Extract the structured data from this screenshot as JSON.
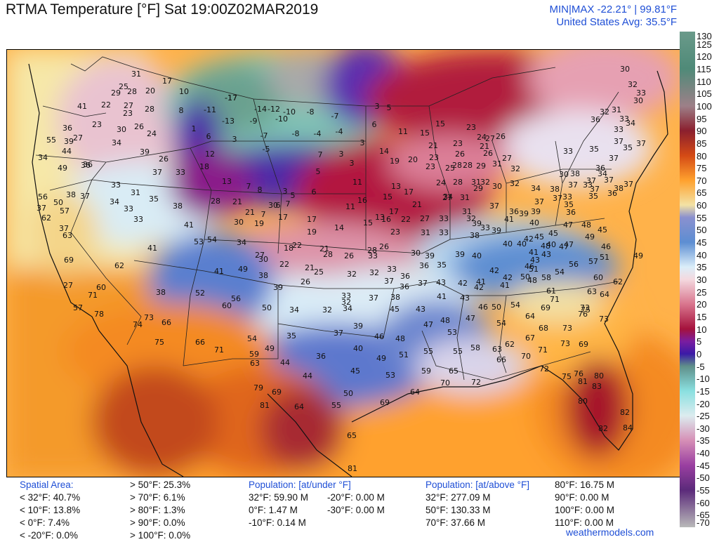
{
  "header": {
    "title": "RTMA Temperature [°F]  Sat 19:00Z02MAR2019",
    "minmax": "MIN|MAX -22.21°  |  99.81°F",
    "avg": "United States Avg: 35.5°F"
  },
  "colorbar": {
    "ticks": [
      "130",
      "125",
      "120",
      "115",
      "110",
      "105",
      "100",
      "95",
      "90",
      "85",
      "80",
      "75",
      "70",
      "65",
      "60",
      "55",
      "50",
      "45",
      "40",
      "35",
      "30",
      "25",
      "20",
      "15",
      "10",
      "5",
      "0",
      "-5",
      "-10",
      "-15",
      "-20",
      "-25",
      "-30",
      "-35",
      "-40",
      "-45",
      "-50",
      "-55",
      "-60",
      "-65",
      "-70"
    ],
    "stops": [
      {
        "v": 130,
        "c": "#6a9a8a"
      },
      {
        "v": 115,
        "c": "#4f8a78"
      },
      {
        "v": 100,
        "c": "#9d8088"
      },
      {
        "v": 90,
        "c": "#8b1f2e"
      },
      {
        "v": 80,
        "c": "#d44a15"
      },
      {
        "v": 70,
        "c": "#ffa12e"
      },
      {
        "v": 60,
        "c": "#f3e2a5"
      },
      {
        "v": 55,
        "c": "#8a90cf"
      },
      {
        "v": 45,
        "c": "#5d8ed2"
      },
      {
        "v": 35,
        "c": "#dbeef9"
      },
      {
        "v": 30,
        "c": "#f4d9df"
      },
      {
        "v": 20,
        "c": "#d9758d"
      },
      {
        "v": 10,
        "c": "#a5123c"
      },
      {
        "v": 5,
        "c": "#7a1da0"
      },
      {
        "v": 0,
        "c": "#3b1aa7"
      },
      {
        "v": -5,
        "c": "#5f8f8a"
      },
      {
        "v": -15,
        "c": "#8ae0e0"
      },
      {
        "v": -25,
        "c": "#dcecef"
      },
      {
        "v": -35,
        "c": "#d68fb6"
      },
      {
        "v": -45,
        "c": "#9a3fa1"
      },
      {
        "v": -55,
        "c": "#5b2a7a"
      },
      {
        "v": -70,
        "c": "#b9b9b9"
      }
    ]
  },
  "map_labels": [
    [
      "31",
      193,
      108
    ],
    [
      "25",
      175,
      126
    ],
    [
      "28",
      187,
      133
    ],
    [
      "20",
      213,
      132
    ],
    [
      "17",
      237,
      118
    ],
    [
      "10",
      261,
      133
    ],
    [
      "8",
      257,
      160
    ],
    [
      "29",
      164,
      135
    ],
    [
      "22",
      150,
      152
    ],
    [
      "27",
      182,
      153
    ],
    [
      "23",
      181,
      164
    ],
    [
      "28",
      212,
      158
    ],
    [
      "41",
      116,
      154
    ],
    [
      "23",
      137,
      180
    ],
    [
      "30",
      172,
      187
    ],
    [
      "26",
      197,
      183
    ],
    [
      "24",
      215,
      193
    ],
    [
      "36",
      95,
      185
    ],
    [
      "39",
      97,
      204
    ],
    [
      "27",
      110,
      199
    ],
    [
      "44",
      94,
      218
    ],
    [
      "34",
      165,
      206
    ],
    [
      "39",
      205,
      219
    ],
    [
      "26",
      232,
      229
    ],
    [
      "37",
      223,
      248
    ],
    [
      "33",
      256,
      248
    ],
    [
      "36",
      124,
      237
    ],
    [
      "49",
      88,
      242
    ],
    [
      "-17",
      328,
      142
    ],
    [
      "-11",
      298,
      159
    ],
    [
      "-13",
      324,
      175
    ],
    [
      "-14",
      370,
      158
    ],
    [
      "-12",
      389,
      158
    ],
    [
      "-9",
      360,
      175
    ],
    [
      "-10",
      400,
      172
    ],
    [
      "-8",
      441,
      162
    ],
    [
      "-7",
      476,
      168
    ],
    [
      "-10",
      411,
      162
    ],
    [
      "-7",
      375,
      196
    ],
    [
      "-8",
      420,
      193
    ],
    [
      "-4",
      451,
      193
    ],
    [
      "-4",
      482,
      190
    ],
    [
      "-5",
      378,
      215
    ],
    [
      "1",
      275,
      186
    ],
    [
      "6",
      296,
      197
    ],
    [
      "3",
      333,
      201
    ],
    [
      "12",
      298,
      222
    ],
    [
      "13",
      322,
      261
    ],
    [
      "18",
      290,
      240
    ],
    [
      "7",
      353,
      268
    ],
    [
      "8",
      369,
      273
    ],
    [
      "3",
      405,
      275
    ],
    [
      "6",
      446,
      276
    ],
    [
      "5",
      452,
      247
    ],
    [
      "7",
      455,
      223
    ],
    [
      "3",
      485,
      222
    ],
    [
      "3",
      500,
      235
    ],
    [
      "3",
      515,
      206
    ],
    [
      "6",
      532,
      180
    ],
    [
      "3",
      536,
      154
    ],
    [
      "5",
      553,
      156
    ],
    [
      "11",
      573,
      190
    ],
    [
      "14",
      546,
      218
    ],
    [
      "19",
      561,
      232
    ],
    [
      "15",
      604,
      192
    ],
    [
      "15",
      626,
      179
    ],
    [
      "23",
      670,
      184
    ],
    [
      "21",
      616,
      210
    ],
    [
      "23",
      617,
      227
    ],
    [
      "20",
      587,
      230
    ],
    [
      "23",
      612,
      240
    ],
    [
      "25",
      640,
      242
    ],
    [
      "28",
      650,
      238
    ],
    [
      "28",
      665,
      238
    ],
    [
      "29",
      684,
      239
    ],
    [
      "31",
      707,
      236
    ],
    [
      "32",
      733,
      243
    ],
    [
      "26",
      654,
      222
    ],
    [
      "23",
      651,
      207
    ],
    [
      "27",
      697,
      200
    ],
    [
      "26",
      712,
      197
    ],
    [
      "24",
      685,
      198
    ],
    [
      "21",
      689,
      211
    ],
    [
      "26",
      694,
      221
    ],
    [
      "27",
      721,
      228
    ],
    [
      "13",
      563,
      268
    ],
    [
      "16",
      515,
      288
    ],
    [
      "11",
      508,
      262
    ],
    [
      "11",
      498,
      297
    ],
    [
      "15",
      551,
      283
    ],
    [
      "17",
      581,
      276
    ],
    [
      "21",
      593,
      294
    ],
    [
      "13",
      540,
      312
    ],
    [
      "15",
      523,
      320
    ],
    [
      "17",
      560,
      304
    ],
    [
      "16",
      549,
      315
    ],
    [
      "22",
      577,
      315
    ],
    [
      "27",
      604,
      314
    ],
    [
      "33",
      631,
      314
    ],
    [
      "34",
      637,
      283
    ],
    [
      "24",
      627,
      263
    ],
    [
      "28",
      651,
      262
    ],
    [
      "31",
      677,
      262
    ],
    [
      "29",
      680,
      271
    ],
    [
      "32",
      690,
      262
    ],
    [
      "30",
      707,
      268
    ],
    [
      "32",
      732,
      264
    ],
    [
      "27",
      636,
      284
    ],
    [
      "31",
      661,
      284
    ],
    [
      "17",
      443,
      315
    ],
    [
      "14",
      482,
      327
    ],
    [
      "19",
      443,
      333
    ],
    [
      "19",
      368,
      321
    ],
    [
      "17",
      402,
      312
    ],
    [
      "21",
      355,
      305
    ],
    [
      "30",
      339,
      319
    ],
    [
      "30",
      388,
      295
    ],
    [
      "7",
      374,
      308
    ],
    [
      "6",
      395,
      295
    ],
    [
      "7",
      409,
      293
    ],
    [
      "5",
      416,
      281
    ],
    [
      "23",
      562,
      333
    ],
    [
      "31",
      605,
      334
    ],
    [
      "33",
      631,
      334
    ],
    [
      "28",
      529,
      359
    ],
    [
      "26",
      546,
      354
    ],
    [
      "31",
      664,
      304
    ],
    [
      "32",
      670,
      314
    ],
    [
      "39",
      678,
      321
    ],
    [
      "38",
      675,
      338
    ],
    [
      "33",
      690,
      327
    ],
    [
      "39",
      706,
      331
    ],
    [
      "36",
      731,
      304
    ],
    [
      "39",
      762,
      304
    ],
    [
      "37",
      703,
      296
    ],
    [
      "37",
      767,
      290
    ],
    [
      "39",
      745,
      307
    ],
    [
      "41",
      724,
      315
    ],
    [
      "40",
      760,
      320
    ],
    [
      "34",
      762,
      271
    ],
    [
      "30",
      802,
      251
    ],
    [
      "33",
      836,
      266
    ],
    [
      "37",
      846,
      272
    ],
    [
      "38",
      880,
      271
    ],
    [
      "38",
      789,
      272
    ],
    [
      "33",
      807,
      283
    ],
    [
      "35",
      809,
      294
    ],
    [
      "37",
      815,
      266
    ],
    [
      "37",
      793,
      285
    ],
    [
      "36",
      812,
      305
    ],
    [
      "45",
      767,
      340
    ],
    [
      "45",
      787,
      335
    ],
    [
      "47",
      808,
      323
    ],
    [
      "48",
      834,
      323
    ],
    [
      "49",
      839,
      340
    ],
    [
      "45",
      857,
      330
    ],
    [
      "46",
      862,
      354
    ],
    [
      "51",
      860,
      369
    ],
    [
      "49",
      908,
      367
    ],
    [
      "57",
      844,
      375
    ],
    [
      "56",
      816,
      379
    ],
    [
      "54",
      796,
      390
    ],
    [
      "40",
      742,
      350
    ],
    [
      "42",
      752,
      343
    ],
    [
      "41",
      759,
      362
    ],
    [
      "40",
      784,
      351
    ],
    [
      "47",
      809,
      351
    ],
    [
      "43",
      777,
      365
    ],
    [
      "40",
      722,
      350
    ],
    [
      "43",
      761,
      373
    ],
    [
      "42",
      703,
      388
    ],
    [
      "40",
      678,
      367
    ],
    [
      "39",
      654,
      365
    ],
    [
      "46",
      753,
      382
    ],
    [
      "48",
      757,
      402
    ],
    [
      "42",
      722,
      398
    ],
    [
      "41",
      718,
      409
    ],
    [
      "41",
      684,
      404
    ],
    [
      "42",
      681,
      412
    ],
    [
      "42",
      658,
      406
    ],
    [
      "43",
      627,
      405
    ],
    [
      "41",
      628,
      425
    ],
    [
      "43",
      661,
      427
    ],
    [
      "46",
      687,
      440
    ],
    [
      "50",
      706,
      440
    ],
    [
      "54",
      733,
      437
    ],
    [
      "50",
      747,
      397
    ],
    [
      "51",
      759,
      386
    ],
    [
      "39",
      611,
      367
    ],
    [
      "35",
      628,
      380
    ],
    [
      "36",
      603,
      381
    ],
    [
      "30",
      591,
      363
    ],
    [
      "36",
      576,
      396
    ],
    [
      "33",
      557,
      386
    ],
    [
      "36",
      575,
      411
    ],
    [
      "37",
      601,
      406
    ],
    [
      "32",
      532,
      391
    ],
    [
      "37",
      553,
      403
    ],
    [
      "32",
      500,
      393
    ],
    [
      "37",
      531,
      427
    ],
    [
      "45",
      561,
      443
    ],
    [
      "43",
      598,
      443
    ],
    [
      "38",
      562,
      426
    ],
    [
      "47",
      609,
      465
    ],
    [
      "48",
      633,
      459
    ],
    [
      "53",
      643,
      476
    ],
    [
      "47",
      669,
      456
    ],
    [
      "54",
      713,
      463
    ],
    [
      "58",
      777,
      398
    ],
    [
      "60",
      851,
      398
    ],
    [
      "61",
      784,
      417
    ],
    [
      "63",
      842,
      418
    ],
    [
      "64",
      860,
      422
    ],
    [
      "62",
      879,
      404
    ],
    [
      "71",
      789,
      429
    ],
    [
      "73",
      832,
      441
    ],
    [
      "64",
      754,
      453
    ],
    [
      "69",
      776,
      441
    ],
    [
      "68",
      773,
      470
    ],
    [
      "73",
      807,
      470
    ],
    [
      "76",
      829,
      450
    ],
    [
      "73",
      859,
      457
    ],
    [
      "75",
      833,
      444
    ],
    [
      "73",
      804,
      492
    ],
    [
      "71",
      772,
      501
    ],
    [
      "67",
      754,
      484
    ],
    [
      "70",
      748,
      510
    ],
    [
      "69",
      830,
      493
    ],
    [
      "72",
      774,
      528
    ],
    [
      "75",
      806,
      539
    ],
    [
      "76",
      823,
      535
    ],
    [
      "81",
      829,
      546
    ],
    [
      "80",
      852,
      538
    ],
    [
      "83",
      849,
      553
    ],
    [
      "63",
      707,
      500
    ],
    [
      "66",
      713,
      515
    ],
    [
      "62",
      725,
      493
    ],
    [
      "58",
      676,
      498
    ],
    [
      "80",
      829,
      574
    ],
    [
      "82",
      889,
      590
    ],
    [
      "84",
      893,
      612
    ],
    [
      "82",
      858,
      613
    ],
    [
      "51",
      574,
      508
    ],
    [
      "55",
      609,
      503
    ],
    [
      "55",
      651,
      503
    ],
    [
      "59",
      606,
      531
    ],
    [
      "65",
      645,
      531
    ],
    [
      "70",
      633,
      548
    ],
    [
      "72",
      677,
      547
    ],
    [
      "64",
      590,
      561
    ],
    [
      "69",
      547,
      576
    ],
    [
      "65",
      500,
      623
    ],
    [
      "81",
      501,
      670
    ],
    [
      "55",
      478,
      580
    ],
    [
      "50",
      495,
      563
    ],
    [
      "53",
      555,
      537
    ],
    [
      "49",
      542,
      513
    ],
    [
      "48",
      569,
      485
    ],
    [
      "46",
      539,
      482
    ],
    [
      "40",
      509,
      499
    ],
    [
      "45",
      505,
      531
    ],
    [
      "44",
      437,
      538
    ],
    [
      "36",
      456,
      510
    ],
    [
      "44",
      405,
      519
    ],
    [
      "35",
      414,
      481
    ],
    [
      "39",
      509,
      467
    ],
    [
      "37",
      481,
      477
    ],
    [
      "34",
      494,
      442
    ],
    [
      "32",
      465,
      444
    ],
    [
      "33",
      492,
      424
    ],
    [
      "34",
      418,
      444
    ],
    [
      "50",
      379,
      441
    ],
    [
      "33",
      530,
      367
    ],
    [
      "32",
      492,
      433
    ],
    [
      "26",
      434,
      404
    ],
    [
      "25",
      453,
      390
    ],
    [
      "21",
      440,
      384
    ],
    [
      "22",
      404,
      379
    ],
    [
      "21",
      461,
      357
    ],
    [
      "28",
      466,
      365
    ],
    [
      "26",
      496,
      367
    ],
    [
      "22",
      422,
      352
    ],
    [
      "18",
      410,
      356
    ],
    [
      "27",
      369,
      366
    ],
    [
      "30",
      374,
      372
    ],
    [
      "34",
      343,
      348
    ],
    [
      "38",
      374,
      395
    ],
    [
      "39",
      395,
      412
    ],
    [
      "41",
      311,
      389
    ],
    [
      "49",
      345,
      386
    ],
    [
      "33",
      196,
      315
    ],
    [
      "41",
      268,
      323
    ],
    [
      "34",
      162,
      290
    ],
    [
      "33",
      182,
      300
    ],
    [
      "31",
      192,
      277
    ],
    [
      "35",
      218,
      286
    ],
    [
      "38",
      252,
      296
    ],
    [
      "28",
      306,
      289
    ],
    [
      "21",
      337,
      290
    ],
    [
      "41",
      216,
      356
    ],
    [
      "53",
      282,
      347
    ],
    [
      "54",
      301,
      344
    ],
    [
      "52",
      284,
      420
    ],
    [
      "56",
      335,
      428
    ],
    [
      "60",
      322,
      438
    ],
    [
      "66",
      284,
      490
    ],
    [
      "71",
      311,
      501
    ],
    [
      "59",
      361,
      507
    ],
    [
      "63",
      362,
      520
    ],
    [
      "54",
      358,
      485
    ],
    [
      "49",
      383,
      499
    ],
    [
      "79",
      367,
      555
    ],
    [
      "69",
      393,
      561
    ],
    [
      "81",
      376,
      580
    ],
    [
      "64",
      425,
      582
    ],
    [
      "38",
      228,
      419
    ],
    [
      "62",
      169,
      381
    ],
    [
      "60",
      143,
      412
    ],
    [
      "69",
      97,
      373
    ],
    [
      "63",
      95,
      338
    ],
    [
      "57",
      91,
      303
    ],
    [
      "37",
      58,
      299
    ],
    [
      "50",
      82,
      291
    ],
    [
      "56",
      60,
      283
    ],
    [
      "38",
      100,
      280
    ],
    [
      "37",
      120,
      282
    ],
    [
      "62",
      65,
      313
    ],
    [
      "37",
      90,
      328
    ],
    [
      "33",
      164,
      266
    ],
    [
      "57",
      110,
      441
    ],
    [
      "71",
      131,
      423
    ],
    [
      "78",
      140,
      450
    ],
    [
      "74",
      195,
      465
    ],
    [
      "73",
      211,
      455
    ],
    [
      "66",
      236,
      462
    ],
    [
      "75",
      226,
      490
    ],
    [
      "55",
      72,
      202
    ],
    [
      "34",
      60,
      227
    ],
    [
      "27",
      96,
      409
    ],
    [
      "36",
      121,
      238
    ],
    [
      "-17",
      328,
      142
    ],
    [
      "35",
      845,
      215
    ],
    [
      "33",
      808,
      218
    ],
    [
      "33",
      888,
      172
    ],
    [
      "30",
      889,
      101
    ],
    [
      "32",
      900,
      123
    ],
    [
      "33",
      912,
      135
    ],
    [
      "32",
      860,
      162
    ],
    [
      "31",
      877,
      159
    ],
    [
      "30",
      908,
      146
    ],
    [
      "36",
      847,
      173
    ],
    [
      "33",
      880,
      187
    ],
    [
      "34",
      897,
      178
    ],
    [
      "37",
      880,
      204
    ],
    [
      "35",
      893,
      213
    ],
    [
      "37",
      912,
      207
    ],
    [
      "37",
      873,
      228
    ],
    [
      "36",
      854,
      242
    ],
    [
      "34",
      857,
      250
    ],
    [
      "37",
      841,
      260
    ],
    [
      "38",
      818,
      250
    ],
    [
      "35",
      844,
      282
    ],
    [
      "37",
      866,
      259
    ],
    [
      "37",
      894,
      265
    ],
    [
      "36",
      871,
      278
    ],
    [
      "47",
      802,
      354
    ],
    [
      "48",
      776,
      353
    ]
  ],
  "footer": {
    "spatial_area": {
      "header": "Spatial Area:",
      "left": [
        "< 32°F: 40.7%",
        "< 10°F: 13.8%",
        "< 0°F: 7.4%",
        "< -20°F: 0.0%"
      ],
      "right": [
        "> 50°F: 25.3%",
        "> 70°F: 6.1%",
        "> 80°F: 1.3%",
        "> 90°F: 0.0%",
        "> 100°F: 0.0%"
      ]
    },
    "population_under": {
      "header": "Population: [at/under °F]",
      "left": [
        "32°F: 59.90 M",
        "0°F: 1.47 M",
        "-10°F: 0.14 M"
      ],
      "right": [
        "-20°F: 0.00 M",
        "-30°F: 0.00 M"
      ]
    },
    "population_above": {
      "header": "Population: [at/above °F]",
      "left": [
        "32°F: 277.09 M",
        "50°F: 130.33 M",
        "70°F: 37.66 M"
      ],
      "right": [
        "80°F: 16.75 M",
        "90°F: 0.00 M",
        "100°F: 0.00 M",
        "110°F: 0.00 M"
      ]
    }
  },
  "credit": "weathermodels.com"
}
